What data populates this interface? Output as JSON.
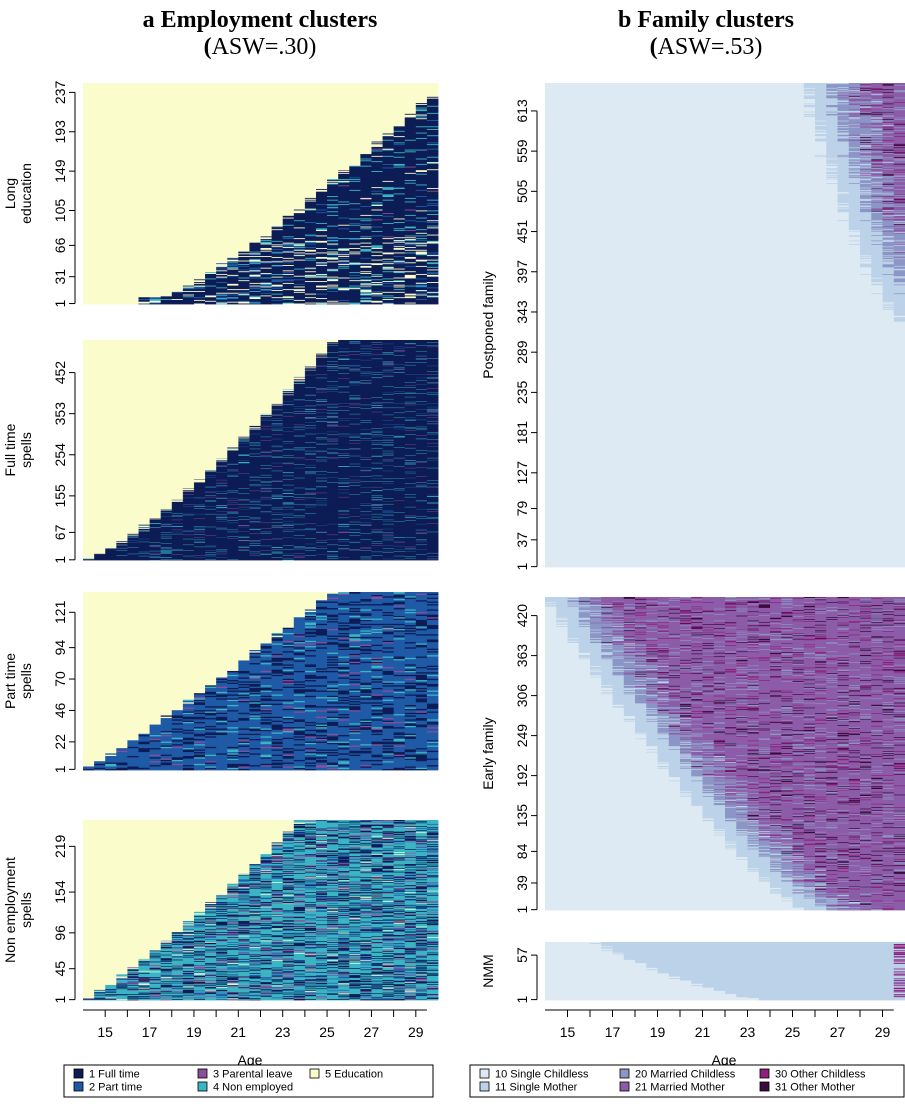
{
  "chart_data": [
    {
      "type": "heatmap",
      "panel_letter": "a",
      "title": "Employment clusters",
      "asw": "(ASW=.30)",
      "asw_open": "(",
      "asw_rest": "ASW=.30)",
      "xlabel": "Age",
      "x_ticks": [
        "15",
        "17",
        "19",
        "21",
        "23",
        "25",
        "27",
        "29"
      ],
      "x_range": [
        14,
        30
      ],
      "legend": [
        {
          "code": "1",
          "label": "1 Full time",
          "color": "#0d1c55"
        },
        {
          "code": "2",
          "label": "2 Part time",
          "color": "#1f5aa6"
        },
        {
          "code": "3",
          "label": "3 Parental leave",
          "color": "#8a4c9c"
        },
        {
          "code": "4",
          "label": "4 Non employed",
          "color": "#3ab5c4"
        },
        {
          "code": "5",
          "label": "5 Education",
          "color": "#fbfccc"
        }
      ],
      "clusters": [
        {
          "name": "Long education",
          "name_lines": [
            "Long",
            "education"
          ],
          "y_ticks": [
            "1",
            "31",
            "66",
            "105",
            "149",
            "193",
            "237"
          ],
          "n": 247
        },
        {
          "name": "Full time spells",
          "name_lines": [
            "Full time",
            "spells"
          ],
          "y_ticks": [
            "1",
            "67",
            "155",
            "254",
            "353",
            "452"
          ],
          "n": 530
        },
        {
          "name": "Part time spells",
          "name_lines": [
            "Part time",
            "spells"
          ],
          "y_ticks": [
            "1",
            "22",
            "46",
            "70",
            "94",
            "121"
          ],
          "n": 136
        },
        {
          "name": "Non employment spells",
          "name_lines": [
            "Non employment",
            "spells"
          ],
          "y_ticks": [
            "1",
            "45",
            "96",
            "154",
            "219"
          ],
          "n": 256
        }
      ]
    },
    {
      "type": "heatmap",
      "panel_letter": "b",
      "title": "Family clusters",
      "asw": "(ASW=.53)",
      "asw_open": "(",
      "asw_rest": "ASW=.53)",
      "xlabel": "Age",
      "x_ticks": [
        "15",
        "17",
        "19",
        "21",
        "23",
        "25",
        "27",
        "29"
      ],
      "x_range": [
        14,
        30
      ],
      "legend": [
        {
          "code": "10",
          "label": "10 Single Childless",
          "color": "#deeaf3"
        },
        {
          "code": "11",
          "label": "11 Single Mother",
          "color": "#bcd2e8"
        },
        {
          "code": "20",
          "label": "20 Married Childless",
          "color": "#8c96c6"
        },
        {
          "code": "21",
          "label": "21 Married Mother",
          "color": "#8c5ca8"
        },
        {
          "code": "30",
          "label": "30 Other Childless",
          "color": "#8e1f7c"
        },
        {
          "code": "31",
          "label": "31 Other Mother",
          "color": "#3d0a3f"
        }
      ],
      "clusters": [
        {
          "name": "Postponed family",
          "name_lines": [
            "Postponed family"
          ],
          "y_ticks": [
            "1",
            "37",
            "79",
            "127",
            "181",
            "235",
            "289",
            "343",
            "397",
            "451",
            "505",
            "559",
            "613"
          ],
          "n": 650
        },
        {
          "name": "Early family",
          "name_lines": [
            "Early family"
          ],
          "y_ticks": [
            "1",
            "39",
            "84",
            "135",
            "192",
            "249",
            "306",
            "363",
            "420"
          ],
          "n": 446
        },
        {
          "name": "NMM",
          "name_lines": [
            "NMM"
          ],
          "y_ticks": [
            "1",
            "57"
          ],
          "n": 73
        }
      ]
    }
  ]
}
